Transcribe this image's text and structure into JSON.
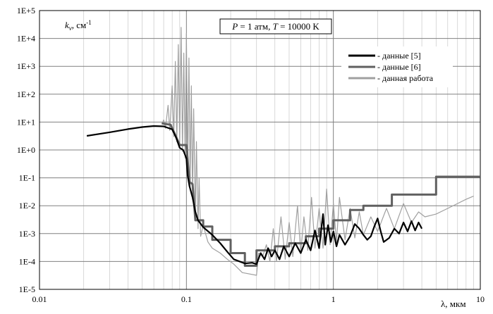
{
  "chart_data": {
    "type": "line",
    "title": "",
    "annotation": {
      "pre_p": "P",
      "p_eq": " = 1 атм, ",
      "pre_t": "T",
      "t_eq": " = 10000 K"
    },
    "xlabel": "λ, мкм",
    "ylabel_main": "k",
    "ylabel_sub": "ν",
    "ylabel_unit": ", см",
    "ylabel_sup": "-1",
    "x_scale": "log",
    "y_scale": "log",
    "xlim": [
      0.01,
      10
    ],
    "ylim": [
      1e-05,
      100000.0
    ],
    "x_ticks": [
      {
        "value": 0.01,
        "label": "0.01"
      },
      {
        "value": 0.1,
        "label": "0.1"
      },
      {
        "value": 1,
        "label": "1"
      },
      {
        "value": 10,
        "label": "10"
      }
    ],
    "y_ticks": [
      {
        "value": 100000.0,
        "label": "1E+5"
      },
      {
        "value": 10000.0,
        "label": "1E+4"
      },
      {
        "value": 1000.0,
        "label": "1E+3"
      },
      {
        "value": 100.0,
        "label": "1E+2"
      },
      {
        "value": 10.0,
        "label": "1E+1"
      },
      {
        "value": 1.0,
        "label": "1E+0"
      },
      {
        "value": 0.1,
        "label": "1E-1"
      },
      {
        "value": 0.01,
        "label": "1E-2"
      },
      {
        "value": 0.001,
        "label": "1E-3"
      },
      {
        "value": 0.0001,
        "label": "1E-4"
      },
      {
        "value": 1e-05,
        "label": "1E-5"
      }
    ],
    "grid": "log minor+major",
    "legend_position": "top-right",
    "series": [
      {
        "name": "- данные [5]",
        "color": "#000000",
        "points": [
          [
            0.021,
            3.2
          ],
          [
            0.03,
            4.3
          ],
          [
            0.04,
            5.6
          ],
          [
            0.05,
            6.6
          ],
          [
            0.06,
            7.2
          ],
          [
            0.07,
            7.0
          ],
          [
            0.08,
            5.5
          ],
          [
            0.085,
            2.8
          ],
          [
            0.09,
            1.2
          ],
          [
            0.095,
            1.0
          ],
          [
            0.1,
            0.5
          ],
          [
            0.102,
            0.12
          ],
          [
            0.105,
            0.05
          ],
          [
            0.11,
            0.02
          ],
          [
            0.115,
            0.006
          ],
          [
            0.12,
            0.003
          ],
          [
            0.13,
            0.0017
          ],
          [
            0.15,
            0.0009
          ],
          [
            0.17,
            0.00045
          ],
          [
            0.19,
            0.00022
          ],
          [
            0.21,
            0.00012
          ],
          [
            0.25,
            8.5e-05
          ],
          [
            0.28,
            9e-05
          ],
          [
            0.3,
            8e-05
          ],
          [
            0.32,
            0.0002
          ],
          [
            0.34,
            0.00012
          ],
          [
            0.36,
            0.0003
          ],
          [
            0.38,
            0.00015
          ],
          [
            0.4,
            0.00025
          ],
          [
            0.43,
            0.00012
          ],
          [
            0.46,
            0.00035
          ],
          [
            0.5,
            0.00015
          ],
          [
            0.55,
            0.00045
          ],
          [
            0.6,
            0.0002
          ],
          [
            0.65,
            0.0006
          ],
          [
            0.7,
            0.00025
          ],
          [
            0.75,
            0.0013
          ],
          [
            0.8,
            0.0003
          ],
          [
            0.85,
            0.005
          ],
          [
            0.88,
            0.0004
          ],
          [
            0.92,
            0.002
          ],
          [
            0.96,
            0.0005
          ],
          [
            1.0,
            0.0012
          ],
          [
            1.05,
            0.00035
          ],
          [
            1.1,
            0.0009
          ],
          [
            1.2,
            0.0004
          ],
          [
            1.3,
            0.0008
          ],
          [
            1.4,
            0.0022
          ],
          [
            1.5,
            0.0015
          ],
          [
            1.6,
            0.0009
          ],
          [
            1.7,
            0.0006
          ],
          [
            1.8,
            0.0008
          ],
          [
            1.9,
            0.0018
          ],
          [
            2.0,
            0.0035
          ],
          [
            2.1,
            0.0012
          ],
          [
            2.2,
            0.0005
          ],
          [
            2.4,
            0.0007
          ],
          [
            2.6,
            0.0015
          ],
          [
            2.8,
            0.001
          ],
          [
            3.0,
            0.0025
          ],
          [
            3.2,
            0.0012
          ],
          [
            3.4,
            0.0028
          ],
          [
            3.6,
            0.0013
          ],
          [
            3.8,
            0.0025
          ],
          [
            4.0,
            0.0015
          ]
        ]
      },
      {
        "name": "- данные [6]",
        "color": "#606060",
        "points": [
          [
            0.068,
            9
          ],
          [
            0.078,
            8
          ],
          [
            0.085,
            3
          ],
          [
            0.09,
            1.5
          ],
          [
            0.1,
            1.5
          ],
          [
            0.105,
            0.07
          ],
          [
            0.11,
            0.06
          ],
          [
            0.115,
            0.003
          ],
          [
            0.13,
            0.003
          ],
          [
            0.13,
            0.0018
          ],
          [
            0.15,
            0.0018
          ],
          [
            0.15,
            0.0006
          ],
          [
            0.2,
            0.0006
          ],
          [
            0.2,
            0.0002
          ],
          [
            0.25,
            0.0002
          ],
          [
            0.25,
            7e-05
          ],
          [
            0.3,
            7e-05
          ],
          [
            0.3,
            0.00025
          ],
          [
            0.4,
            0.00025
          ],
          [
            0.4,
            0.00035
          ],
          [
            0.5,
            0.00035
          ],
          [
            0.5,
            0.00045
          ],
          [
            0.65,
            0.00045
          ],
          [
            0.65,
            0.0008
          ],
          [
            0.8,
            0.0008
          ],
          [
            0.8,
            0.0015
          ],
          [
            1.0,
            0.0015
          ],
          [
            1.0,
            0.003
          ],
          [
            1.3,
            0.003
          ],
          [
            1.3,
            0.007
          ],
          [
            1.6,
            0.007
          ],
          [
            1.6,
            0.01
          ],
          [
            2.5,
            0.01
          ],
          [
            2.5,
            0.025
          ],
          [
            5.0,
            0.025
          ],
          [
            5.0,
            0.11
          ],
          [
            10.0,
            0.11
          ]
        ]
      },
      {
        "name": "- данная работа",
        "color": "#a0a0a0",
        "points": [
          [
            0.068,
            8.5
          ],
          [
            0.07,
            12
          ],
          [
            0.072,
            6
          ],
          [
            0.075,
            40
          ],
          [
            0.077,
            5
          ],
          [
            0.08,
            200
          ],
          [
            0.082,
            3
          ],
          [
            0.084,
            1500
          ],
          [
            0.086,
            2
          ],
          [
            0.088,
            6000
          ],
          [
            0.09,
            1.5
          ],
          [
            0.092,
            25000
          ],
          [
            0.094,
            0.9
          ],
          [
            0.096,
            3000
          ],
          [
            0.098,
            0.5
          ],
          [
            0.1,
            15000
          ],
          [
            0.102,
            0.15
          ],
          [
            0.104,
            2000
          ],
          [
            0.106,
            0.05
          ],
          [
            0.108,
            200
          ],
          [
            0.11,
            0.02
          ],
          [
            0.112,
            30
          ],
          [
            0.115,
            0.003
          ],
          [
            0.117,
            2
          ],
          [
            0.12,
            0.0015
          ],
          [
            0.122,
            0.1
          ],
          [
            0.125,
            0.0008
          ],
          [
            0.13,
            0.002
          ],
          [
            0.14,
            0.0005
          ],
          [
            0.15,
            0.0003
          ],
          [
            0.17,
            0.0002
          ],
          [
            0.19,
            0.00012
          ],
          [
            0.21,
            8e-05
          ],
          [
            0.24,
            4e-05
          ],
          [
            0.3,
            3.2e-05
          ],
          [
            0.31,
            0.0002
          ],
          [
            0.33,
            0.00015
          ],
          [
            0.35,
            0.0004
          ],
          [
            0.37,
            0.0001
          ],
          [
            0.39,
            0.0015
          ],
          [
            0.41,
            0.0001
          ],
          [
            0.44,
            0.004
          ],
          [
            0.47,
            0.00012
          ],
          [
            0.5,
            0.0025
          ],
          [
            0.53,
            0.00015
          ],
          [
            0.57,
            0.01
          ],
          [
            0.6,
            0.0002
          ],
          [
            0.63,
            0.004
          ],
          [
            0.67,
            0.00025
          ],
          [
            0.71,
            0.02
          ],
          [
            0.75,
            0.0003
          ],
          [
            0.8,
            0.008
          ],
          [
            0.85,
            0.0003
          ],
          [
            0.9,
            0.04
          ],
          [
            0.95,
            0.0004
          ],
          [
            1.0,
            0.012
          ],
          [
            1.05,
            0.0005
          ],
          [
            1.1,
            0.02
          ],
          [
            1.2,
            0.0006
          ],
          [
            1.3,
            0.008
          ],
          [
            1.4,
            0.0007
          ],
          [
            1.5,
            0.006
          ],
          [
            1.6,
            0.0009
          ],
          [
            1.8,
            0.004
          ],
          [
            2.0,
            0.0012
          ],
          [
            2.3,
            0.008
          ],
          [
            2.6,
            0.0015
          ],
          [
            3.0,
            0.012
          ],
          [
            3.4,
            0.0025
          ],
          [
            3.8,
            0.006
          ],
          [
            4.2,
            0.004
          ],
          [
            5.0,
            0.005
          ],
          [
            6.0,
            0.008
          ],
          [
            7.0,
            0.012
          ],
          [
            8.0,
            0.017
          ],
          [
            9.0,
            0.022
          ]
        ]
      }
    ]
  }
}
